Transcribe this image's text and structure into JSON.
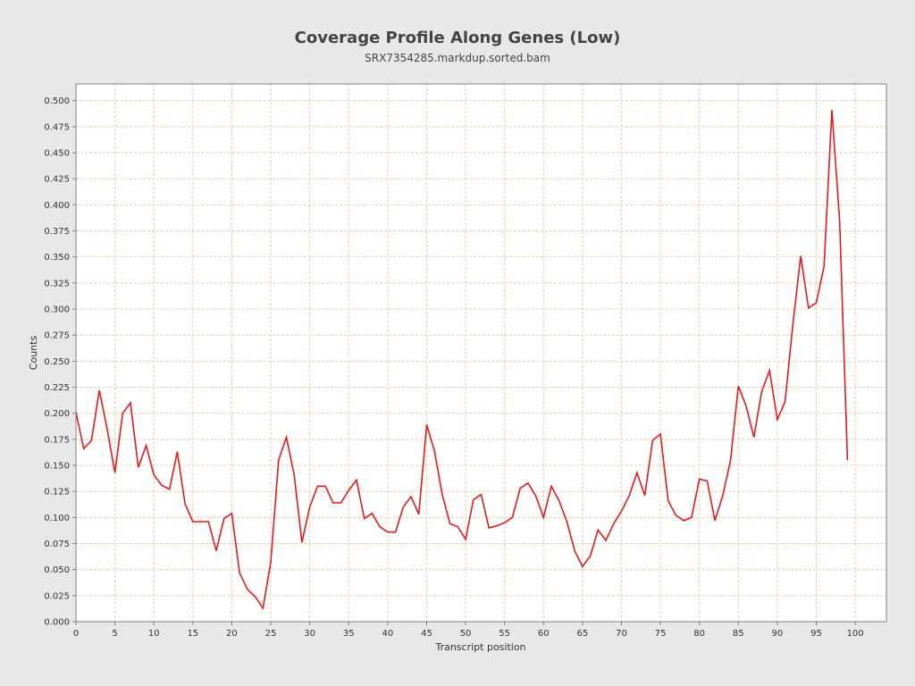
{
  "chart_data": {
    "type": "line",
    "title": "Coverage Profile Along Genes (Low)",
    "subtitle": "SRX7354285.markdup.sorted.bam",
    "xlabel": "Transcript position",
    "ylabel": "Counts",
    "xlim": [
      0,
      104
    ],
    "ylim": [
      0,
      0.516
    ],
    "x_ticks": [
      0,
      5,
      10,
      15,
      20,
      25,
      30,
      35,
      40,
      45,
      50,
      55,
      60,
      65,
      70,
      75,
      80,
      85,
      90,
      95,
      100
    ],
    "y_ticks": [
      "0.000",
      "0.025",
      "0.050",
      "0.075",
      "0.100",
      "0.125",
      "0.150",
      "0.175",
      "0.200",
      "0.225",
      "0.250",
      "0.275",
      "0.300",
      "0.325",
      "0.350",
      "0.375",
      "0.400",
      "0.425",
      "0.450",
      "0.475",
      "0.500"
    ],
    "grid": true,
    "colors": {
      "line": "#e41a1c",
      "grid": "#f4c9a8",
      "plot_background": "#ffffff",
      "figure_background": "#e8e8e8"
    },
    "series": [
      {
        "x": [
          0,
          1,
          2,
          3,
          4,
          5,
          6,
          7,
          8,
          9,
          10,
          11,
          12,
          13,
          14,
          15,
          16,
          17,
          18,
          19,
          20,
          21,
          22,
          23,
          24,
          25,
          26,
          27,
          28,
          29,
          30,
          31,
          32,
          33,
          34,
          35,
          36,
          37,
          38,
          39,
          40,
          41,
          42,
          43,
          44,
          45,
          46,
          47,
          48,
          49,
          50,
          51,
          52,
          53,
          54,
          55,
          56,
          57,
          58,
          59,
          60,
          61,
          62,
          63,
          64,
          65,
          66,
          67,
          68,
          69,
          70,
          71,
          72,
          73,
          74,
          75,
          76,
          77,
          78,
          79,
          80,
          81,
          82,
          83,
          84,
          85,
          86,
          87,
          88,
          89,
          90,
          91,
          92,
          93,
          94,
          95,
          96,
          97,
          98,
          99
        ],
        "values": [
          0.201,
          0.166,
          0.174,
          0.222,
          0.185,
          0.143,
          0.2,
          0.21,
          0.148,
          0.169,
          0.141,
          0.131,
          0.127,
          0.163,
          0.113,
          0.096,
          0.096,
          0.096,
          0.068,
          0.099,
          0.104,
          0.047,
          0.031,
          0.024,
          0.013,
          0.057,
          0.155,
          0.177,
          0.141,
          0.076,
          0.11,
          0.13,
          0.13,
          0.114,
          0.114,
          0.126,
          0.136,
          0.099,
          0.104,
          0.091,
          0.086,
          0.086,
          0.11,
          0.12,
          0.103,
          0.189,
          0.164,
          0.122,
          0.094,
          0.091,
          0.079,
          0.117,
          0.122,
          0.09,
          0.092,
          0.095,
          0.1,
          0.128,
          0.133,
          0.121,
          0.1,
          0.13,
          0.116,
          0.096,
          0.068,
          0.053,
          0.063,
          0.088,
          0.078,
          0.094,
          0.106,
          0.121,
          0.143,
          0.121,
          0.174,
          0.18,
          0.116,
          0.102,
          0.097,
          0.1,
          0.137,
          0.135,
          0.097,
          0.121,
          0.155,
          0.226,
          0.207,
          0.177,
          0.221,
          0.241,
          0.194,
          0.211,
          0.285,
          0.351,
          0.301,
          0.306,
          0.341,
          0.491,
          0.384,
          0.155
        ]
      }
    ]
  }
}
